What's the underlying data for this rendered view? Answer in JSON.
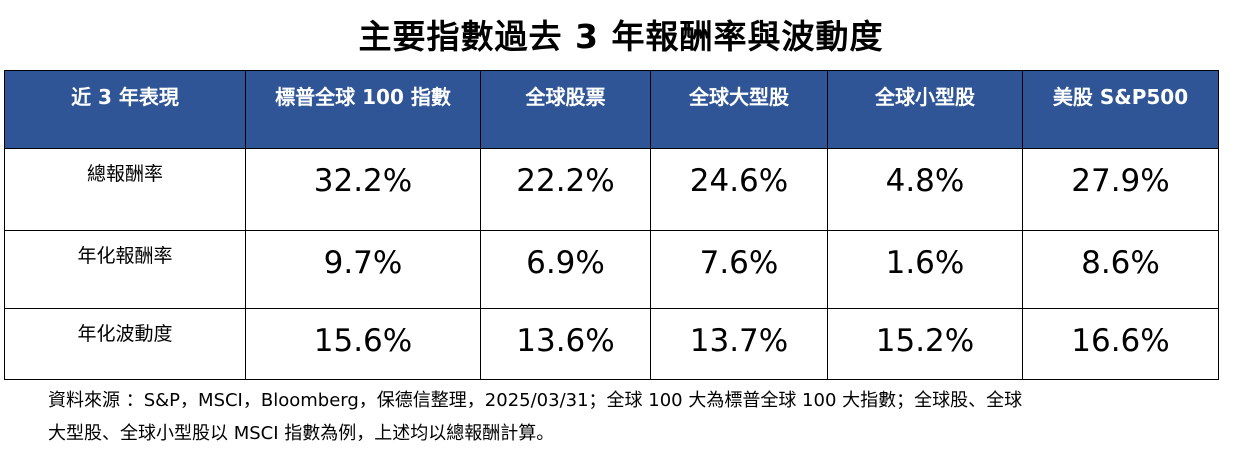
{
  "title": "主要指數過去 3 年報酬率與波動度",
  "table": {
    "headers": [
      "近 3 年表現",
      "標普全球 100 指數",
      "全球股票",
      "全球大型股",
      "全球小型股",
      "美股 S&P500"
    ],
    "rows": [
      {
        "label": "總報酬率",
        "values": [
          "32.2%",
          "22.2%",
          "24.6%",
          "4.8%",
          "27.9%"
        ]
      },
      {
        "label": "年化報酬率",
        "values": [
          "9.7%",
          "6.9%",
          "7.6%",
          "1.6%",
          "8.6%"
        ]
      },
      {
        "label": "年化波動度",
        "values": [
          "15.6%",
          "13.6%",
          "13.7%",
          "15.2%",
          "16.6%"
        ]
      }
    ]
  },
  "note": {
    "line1": "資料來源 ：S&P，MSCI，Bloomberg，保德信整理，2025/03/31；全球 100 大為標普全球 100 大指數；全球股、全球",
    "line2": "大型股、全球小型股以 MSCI 指數為例，上述均以總報酬計算。"
  },
  "colors": {
    "header_bg": "#2F5597",
    "header_text": "#FFFFFF"
  }
}
